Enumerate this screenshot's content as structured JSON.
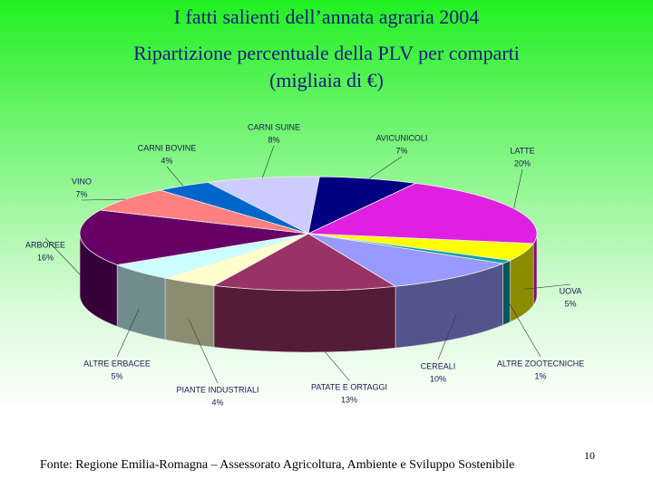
{
  "chart_data": {
    "type": "pie",
    "title": "I fatti salienti dell’annata agraria 2004",
    "subtitle": "Ripartizione percentuale della PLV per comparti",
    "unit_note": "(migliaia di €)",
    "categories": [
      "CARNI SUINE",
      "AVICUNICOLI",
      "LATTE",
      "UOVA",
      "ALTRE ZOOTECNICHE",
      "CEREALI",
      "PATATE E ORTAGGI",
      "PIANTE INDUSTRIALI",
      "ALTRE ERBACEE",
      "ARBOREE",
      "VINO",
      "CARNI BOVINE"
    ],
    "values": [
      8,
      7,
      20,
      5,
      1,
      10,
      13,
      4,
      5,
      16,
      7,
      4
    ],
    "value_labels": [
      "8%",
      "7%",
      "20%",
      "5%",
      "1%",
      "10%",
      "13%",
      "4%",
      "5%",
      "16%",
      "7%",
      "4%"
    ],
    "colors": [
      "#ccccff",
      "#000080",
      "#e020e0",
      "#ffff00",
      "#00a0a0",
      "#9999ff",
      "#993366",
      "#ffffcc",
      "#ccffff",
      "#660066",
      "#ff8080",
      "#0066cc"
    ]
  },
  "footer": {
    "source": "Fonte: Regione Emilia-Romagna – Assessorato Agricoltura, Ambiente e Sviluppo Sostenibile",
    "page_number": 10
  }
}
